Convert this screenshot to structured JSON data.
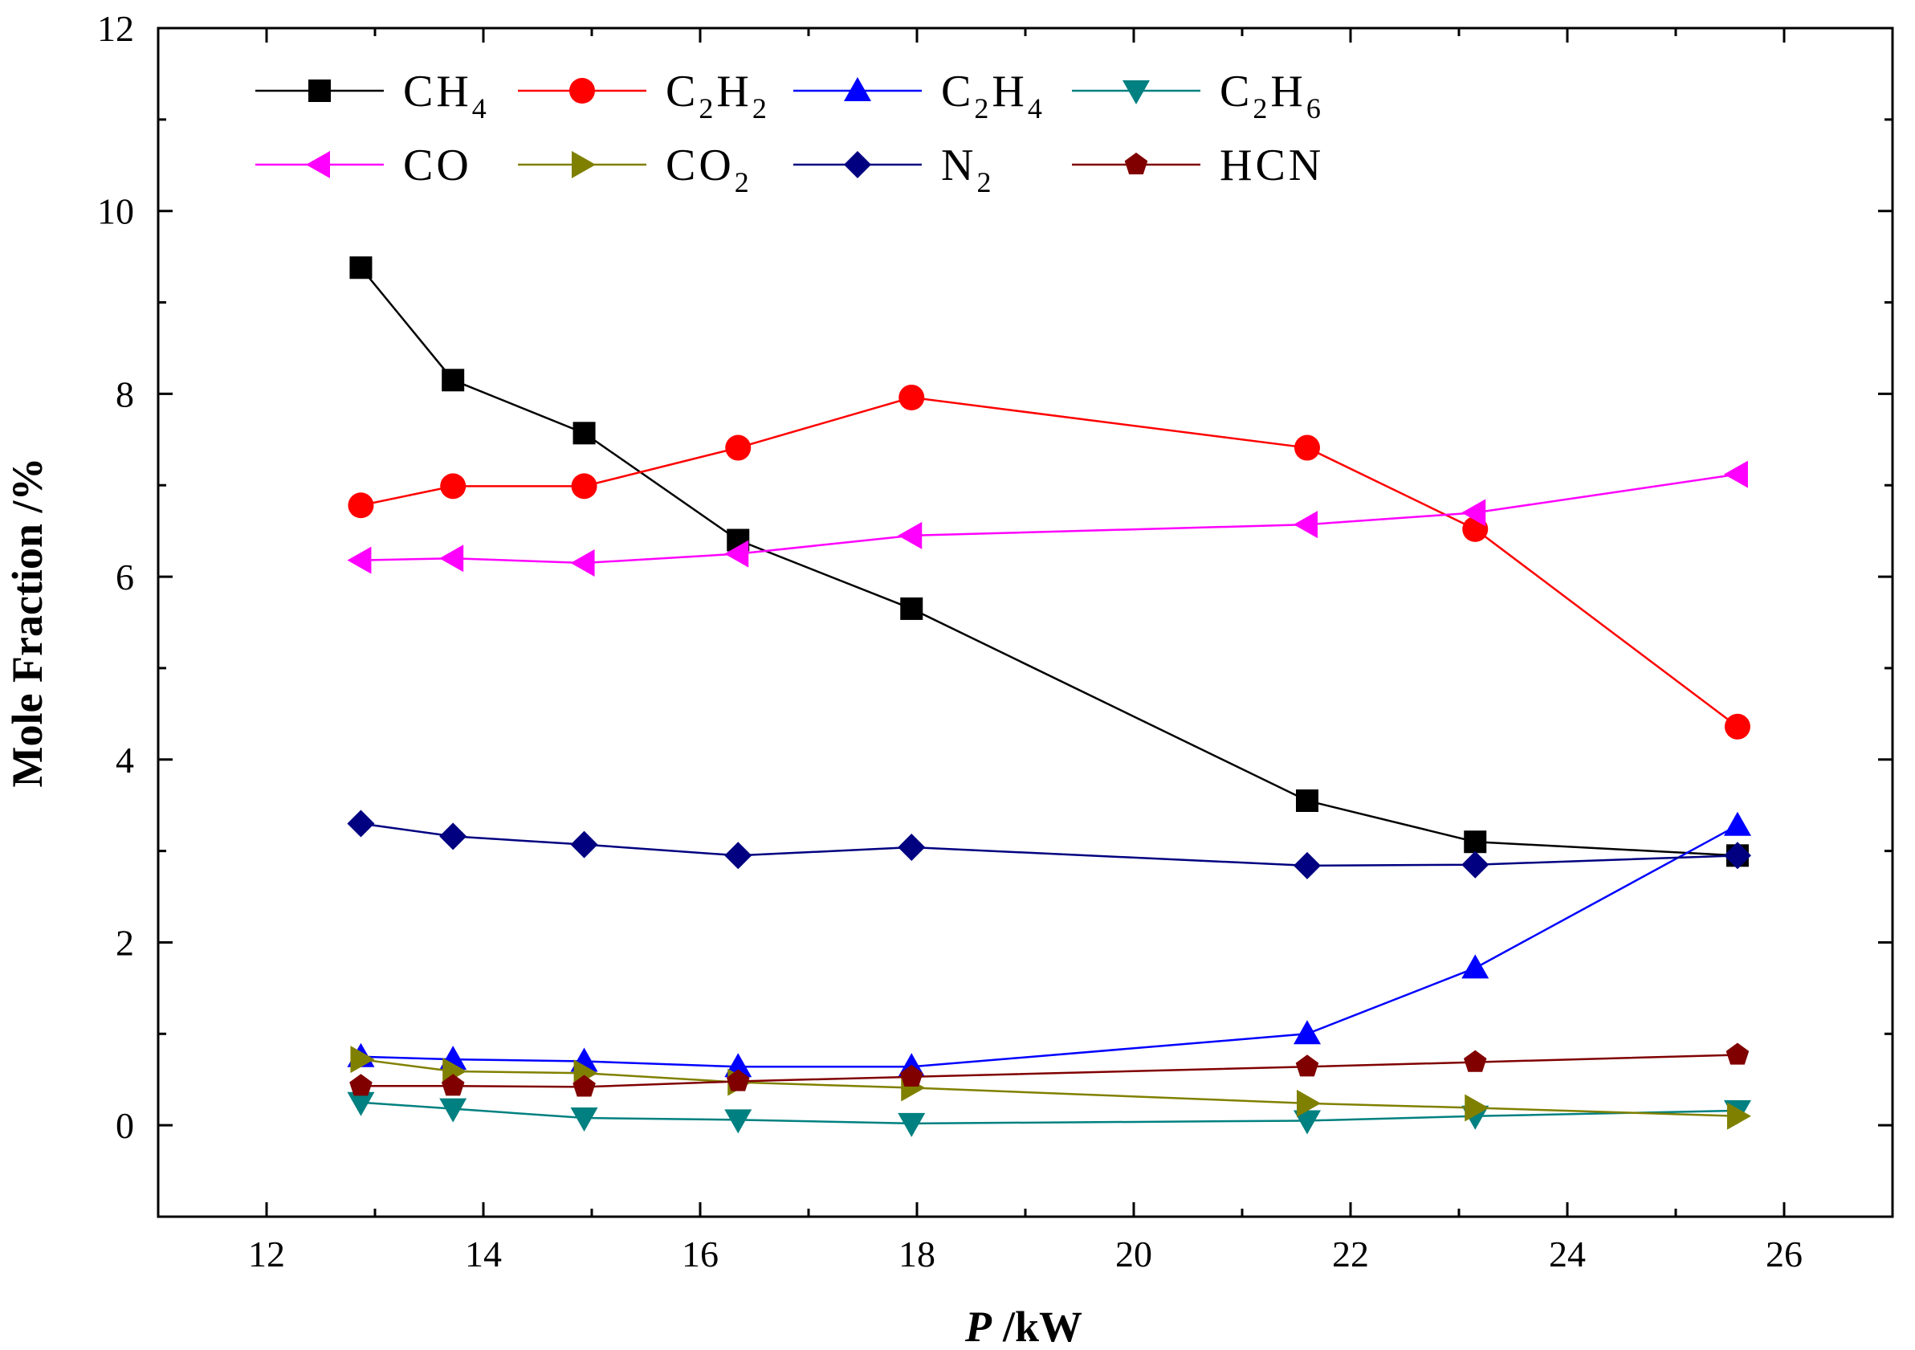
{
  "chart_data": {
    "type": "line",
    "title": "",
    "xlabel": "/kW",
    "xlabel_symbol": "P",
    "ylabel": "Mole Fraction /%",
    "xlim": [
      11,
      27
    ],
    "ylim": [
      -1,
      12
    ],
    "xticks": [
      12,
      14,
      16,
      18,
      20,
      22,
      24,
      26
    ],
    "yticks": [
      0,
      2,
      4,
      6,
      8,
      10,
      12
    ],
    "legend_position": "top-left",
    "x": [
      12.87,
      13.72,
      14.93,
      16.35,
      17.95,
      21.6,
      23.15,
      25.57
    ],
    "series": [
      {
        "name": "CH4",
        "base": "CH",
        "sub": "4",
        "color": "#000000",
        "marker": "square",
        "values": [
          9.38,
          8.15,
          7.57,
          6.4,
          5.65,
          3.55,
          3.1,
          2.95
        ]
      },
      {
        "name": "C2H2",
        "parts": [
          "C",
          "2",
          "H",
          "2"
        ],
        "color": "#ff0000",
        "marker": "circle",
        "values": [
          6.78,
          6.99,
          6.99,
          7.41,
          7.96,
          7.41,
          6.52,
          4.36
        ]
      },
      {
        "name": "C2H4",
        "parts": [
          "C",
          "2",
          "H",
          "4"
        ],
        "color": "#0000ff",
        "marker": "triangle-up",
        "values": [
          0.75,
          0.72,
          0.7,
          0.64,
          0.64,
          1.0,
          1.72,
          3.28
        ]
      },
      {
        "name": "C2H6",
        "parts": [
          "C",
          "2",
          "H",
          "6"
        ],
        "color": "#008080",
        "marker": "triangle-down",
        "values": [
          0.25,
          0.18,
          0.08,
          0.06,
          0.02,
          0.05,
          0.1,
          0.16
        ]
      },
      {
        "name": "CO",
        "base": "CO",
        "sub": "",
        "color": "#ff00ff",
        "marker": "triangle-left",
        "values": [
          6.18,
          6.2,
          6.15,
          6.25,
          6.45,
          6.57,
          6.7,
          7.12
        ]
      },
      {
        "name": "CO2",
        "base": "CO",
        "sub": "2",
        "color": "#808000",
        "marker": "triangle-right",
        "values": [
          0.72,
          0.59,
          0.57,
          0.47,
          0.41,
          0.24,
          0.19,
          0.1
        ]
      },
      {
        "name": "N2",
        "base": "N",
        "sub": "2",
        "color": "#000080",
        "marker": "diamond",
        "values": [
          3.3,
          3.16,
          3.07,
          2.95,
          3.04,
          2.84,
          2.85,
          2.95
        ]
      },
      {
        "name": "HCN",
        "base": "HCN",
        "sub": "",
        "color": "#800000",
        "marker": "pentagon",
        "values": [
          0.43,
          0.43,
          0.42,
          0.48,
          0.53,
          0.64,
          0.69,
          0.77
        ]
      }
    ]
  }
}
